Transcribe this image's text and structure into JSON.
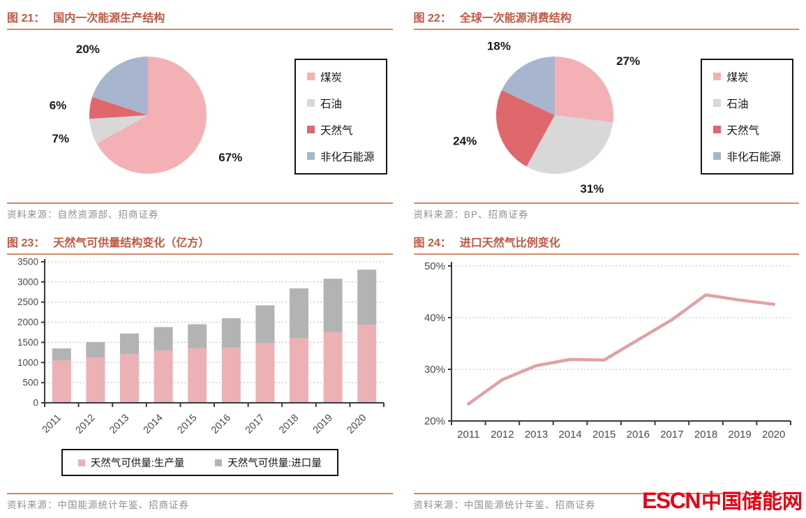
{
  "colors": {
    "title": "#c05843",
    "rule": "#cf8a68",
    "source_text": "#8f8f8f",
    "pie_pink": "#f3b1b6",
    "pie_gray": "#d8d8d8",
    "pie_red": "#df686c",
    "pie_blue": "#a8b5ce",
    "bar_pink": "#ecb1b4",
    "bar_gray": "#b4b3b3",
    "line_pink": "#dfa2a6",
    "axis": "#3a3a3a",
    "grid": "#bbbbbb",
    "logo_red": "#e60012"
  },
  "panels": [
    {
      "fig_no": "图 21：",
      "title": "国内一次能源生产结构",
      "source_label": "资料来源：",
      "source": "自然资源部、招商证券"
    },
    {
      "fig_no": "图 22：",
      "title": "全球一次能源消费结构",
      "source_label": "资料来源：",
      "source": "BP、招商证券"
    },
    {
      "fig_no": "图 23：",
      "title": "天然气可供量结构变化（亿方）",
      "source_label": "资料来源：",
      "source": "中国能源统计年鉴、招商证券"
    },
    {
      "fig_no": "图 24：",
      "title": "进口天然气比例变化",
      "source_label": "资料来源：",
      "source": "中国能源统计年鉴、招商证券"
    }
  ],
  "chart_data": [
    {
      "type": "pie",
      "title": "国内一次能源生产结构",
      "labels": [
        "煤炭",
        "石油",
        "天然气",
        "非化石能源"
      ],
      "values": [
        67,
        7,
        6,
        20
      ],
      "unit": "%",
      "color_keys": [
        "pie_pink",
        "pie_gray",
        "pie_red",
        "pie_blue"
      ],
      "start": "top",
      "direction": "clockwise",
      "legend_position": "right-box"
    },
    {
      "type": "pie",
      "title": "全球一次能源消费结构",
      "labels": [
        "煤炭",
        "石油",
        "天然气",
        "非化石能源"
      ],
      "values": [
        27,
        31,
        24,
        18
      ],
      "unit": "%",
      "color_keys": [
        "pie_pink",
        "pie_gray",
        "pie_red",
        "pie_blue"
      ],
      "start": "top",
      "direction": "clockwise",
      "legend_position": "right-box"
    },
    {
      "type": "bar",
      "stacked": true,
      "title": "天然气可供量结构变化（亿方）",
      "categories": [
        "2011",
        "2012",
        "2013",
        "2014",
        "2015",
        "2016",
        "2017",
        "2018",
        "2019",
        "2020"
      ],
      "series": [
        {
          "name": "天然气可供量:生产量",
          "color_key": "bar_pink",
          "values": [
            1050,
            1120,
            1210,
            1300,
            1350,
            1370,
            1480,
            1600,
            1760,
            1930
          ]
        },
        {
          "name": "天然气可供量:进口量",
          "color_key": "bar_gray",
          "values": [
            300,
            390,
            510,
            580,
            600,
            730,
            940,
            1240,
            1320,
            1375
          ]
        }
      ],
      "ylim": [
        0,
        3500
      ],
      "ytick_step": 500,
      "grid": "dotted-horizontal",
      "legend_position": "bottom-box",
      "xlabel_rotation_deg": -45
    },
    {
      "type": "line",
      "title": "进口天然气比例变化",
      "x": [
        "2011",
        "2012",
        "2013",
        "2014",
        "2015",
        "2016",
        "2017",
        "2018",
        "2019",
        "2020"
      ],
      "values": [
        23.3,
        28.0,
        30.7,
        31.9,
        31.8,
        35.7,
        39.6,
        44.4,
        43.4,
        42.6
      ],
      "unit": "%",
      "color_key": "line_pink",
      "ylim": [
        20,
        50
      ],
      "yticks": [
        20,
        30,
        40,
        50
      ],
      "ytick_suffix": "%",
      "grid": "dotted-horizontal",
      "legend_position": "none"
    }
  ],
  "watermark": {
    "latin": "ESCN",
    "cjk": "中国储能网"
  }
}
